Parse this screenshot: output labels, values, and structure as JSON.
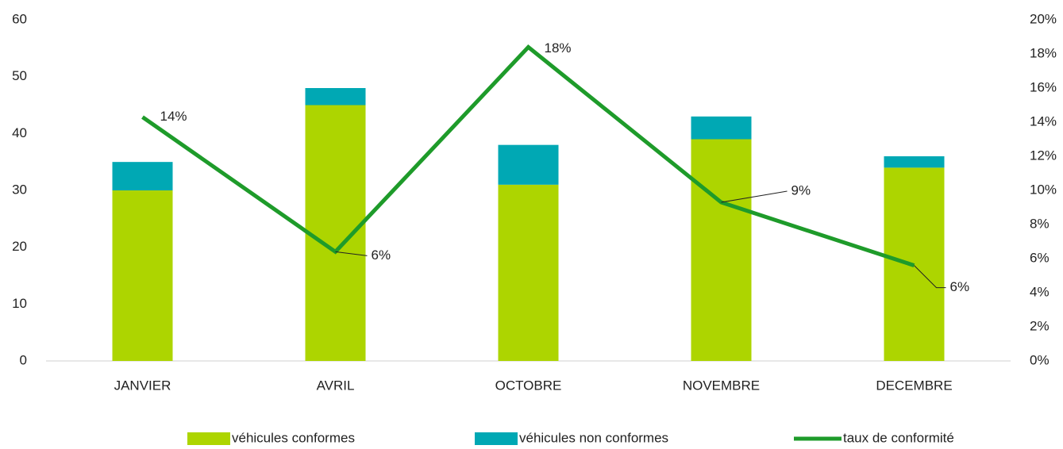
{
  "chart_data": {
    "type": "bar",
    "stacked": true,
    "categories": [
      "JANVIER",
      "AVRIL",
      "OCTOBRE",
      "NOVEMBRE",
      "DECEMBRE"
    ],
    "series": [
      {
        "name": "véhicules conformes",
        "color": "#add500",
        "values": [
          30,
          45,
          31,
          39,
          34
        ]
      },
      {
        "name": "véhicules non conformes",
        "color": "#00a8b4",
        "values": [
          5,
          3,
          7,
          4,
          2
        ]
      },
      {
        "name": "taux de conformité",
        "color": "#1e9b2a",
        "type": "line",
        "axis": "y2",
        "values": [
          14.3,
          6.4,
          18.4,
          9.3,
          5.6
        ],
        "value_labels": [
          "14%",
          "6%",
          "18%",
          "9%",
          "6%"
        ]
      }
    ],
    "ylim": [
      0,
      60
    ],
    "yticks": [
      0,
      10,
      20,
      30,
      40,
      50,
      60
    ],
    "y2lim": [
      0,
      20
    ],
    "y2ticks": [
      {
        "value": 0,
        "label": "0%"
      },
      {
        "value": 2,
        "label": "2%"
      },
      {
        "value": 4,
        "label": "4%"
      },
      {
        "value": 6,
        "label": "6%"
      },
      {
        "value": 8,
        "label": "8%"
      },
      {
        "value": 10,
        "label": "10%"
      },
      {
        "value": 12,
        "label": "12%"
      },
      {
        "value": 14,
        "label": "14%"
      },
      {
        "value": 16,
        "label": "16%"
      },
      {
        "value": 18,
        "label": "18%"
      },
      {
        "value": 20,
        "label": "20%"
      }
    ],
    "grid": false,
    "legend": "bottom"
  }
}
